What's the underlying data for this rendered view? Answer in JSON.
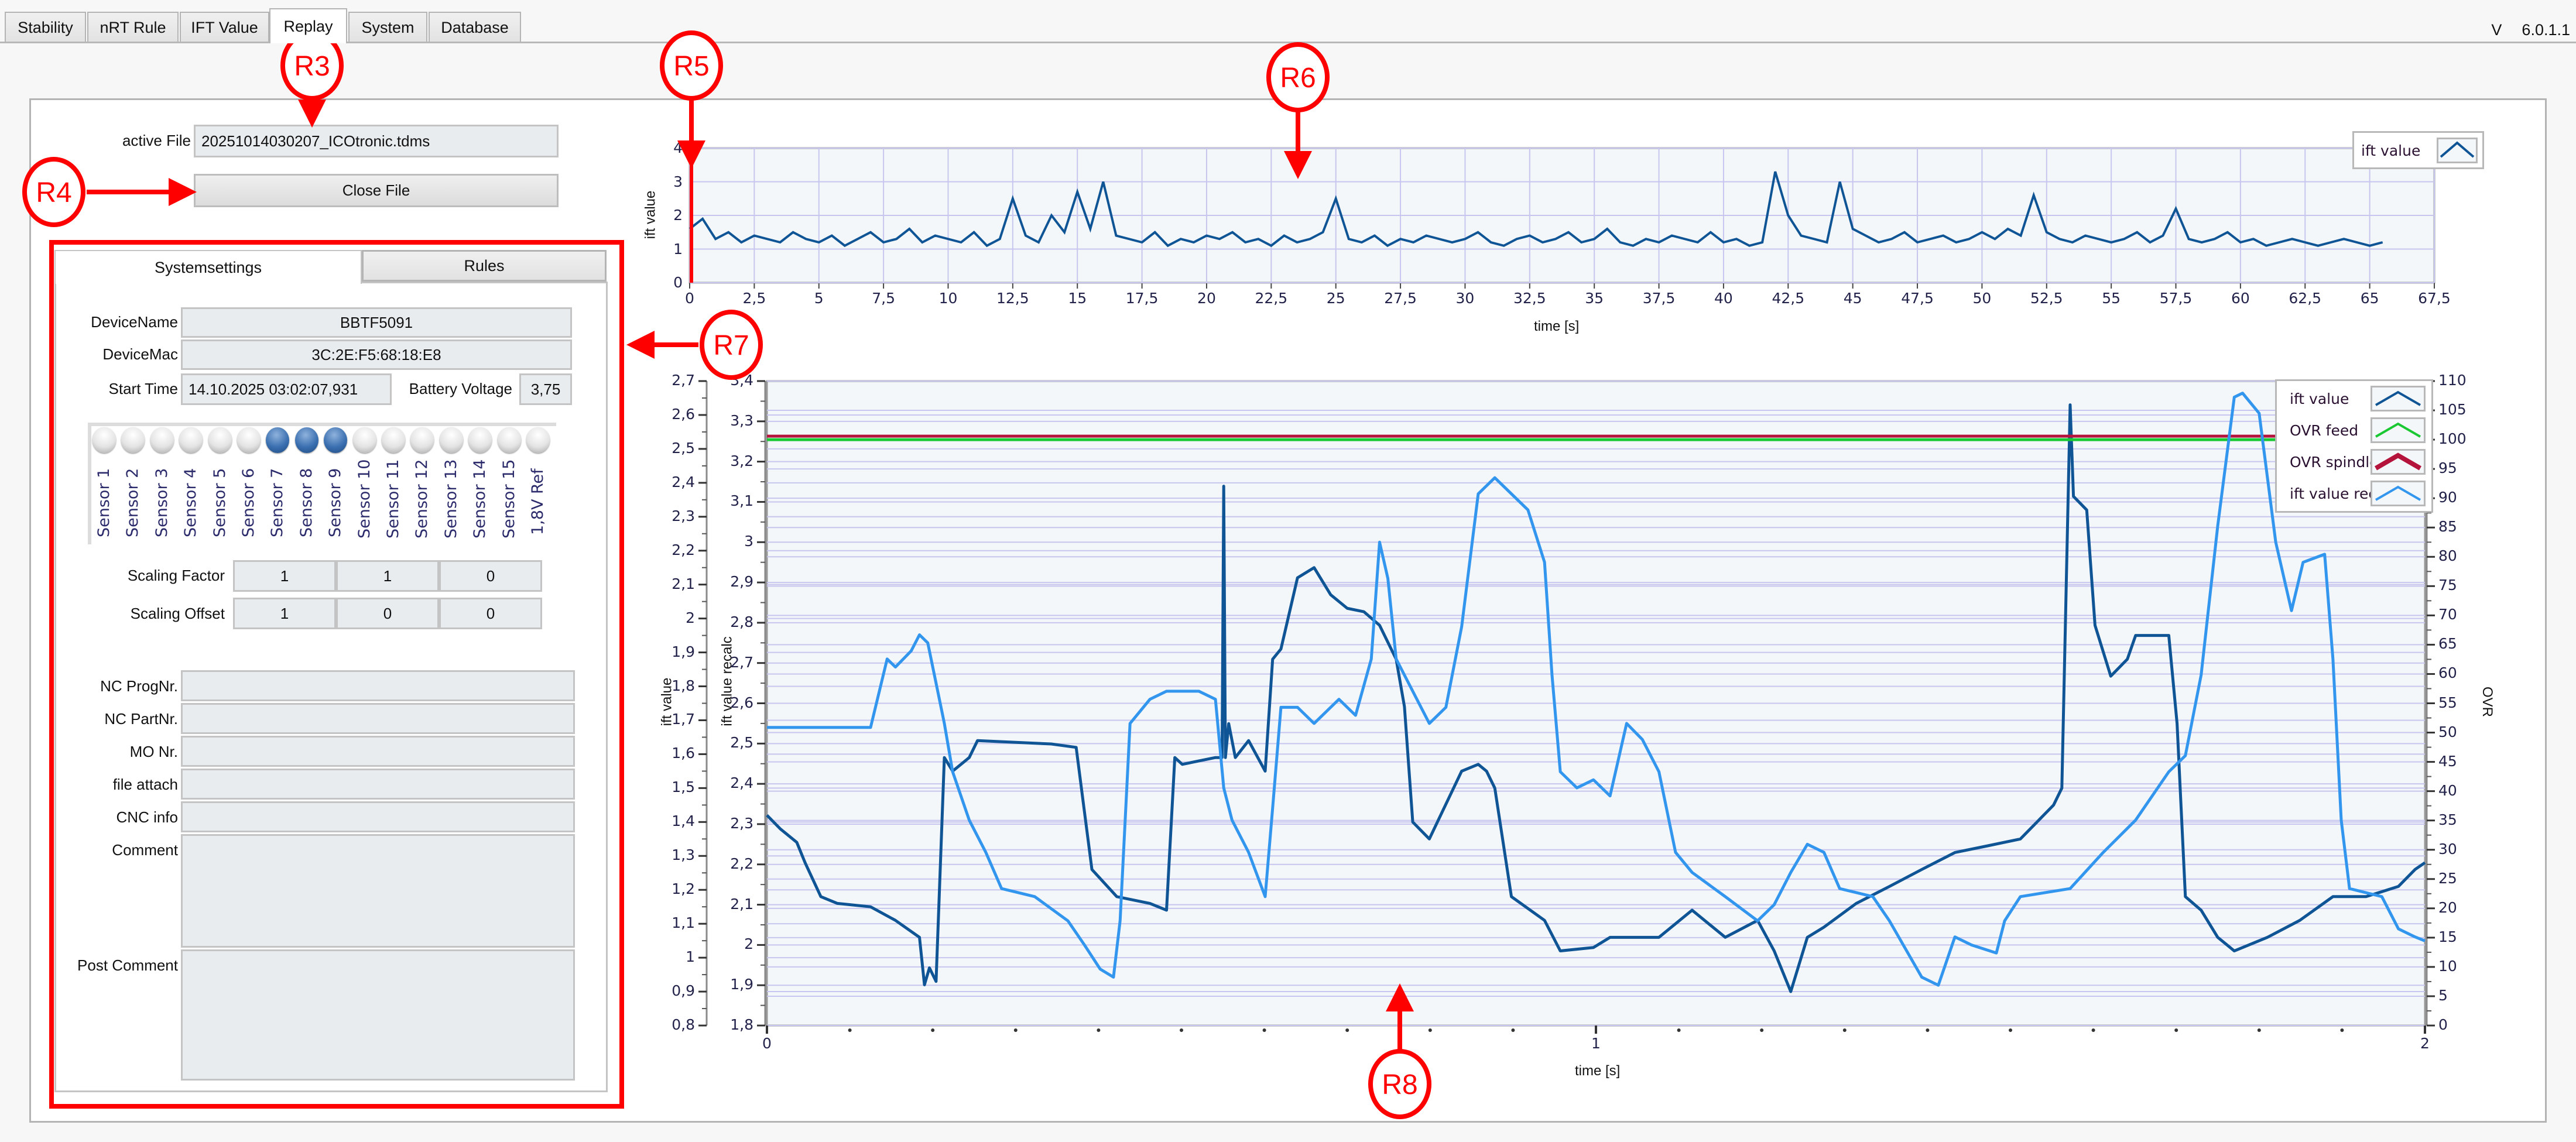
{
  "tabs": [
    {
      "label": "Stability",
      "selected": false
    },
    {
      "label": "nRT Rule",
      "selected": false
    },
    {
      "label": "IFT Value",
      "selected": false
    },
    {
      "label": "Replay",
      "selected": true
    },
    {
      "label": "System",
      "selected": false
    },
    {
      "label": "Database",
      "selected": false
    }
  ],
  "version": {
    "prefix": "V",
    "number": "6.0.1.1"
  },
  "file": {
    "label": "active File",
    "value": "20251014030207_ICOtronic.tdms",
    "close_button": "Close File"
  },
  "inner_tabs": [
    {
      "label": "Systemsettings",
      "selected": true
    },
    {
      "label": "Rules",
      "selected": false
    }
  ],
  "device": {
    "name_label": "DeviceName",
    "name": "BBTF5091",
    "mac_label": "DeviceMac",
    "mac": "3C:2E:F5:68:18:E8",
    "start_label": "Start Time",
    "start": "14.10.2025 03:02:07,931",
    "battery_label": "Battery Voltage",
    "battery": "3,75"
  },
  "sensors": [
    {
      "label": "Sensor 1",
      "on": false
    },
    {
      "label": "Sensor 2",
      "on": false
    },
    {
      "label": "Sensor 3",
      "on": false
    },
    {
      "label": "Sensor 4",
      "on": false
    },
    {
      "label": "Sensor 5",
      "on": false
    },
    {
      "label": "Sensor 6",
      "on": false
    },
    {
      "label": "Sensor 7",
      "on": true
    },
    {
      "label": "Sensor 8",
      "on": true
    },
    {
      "label": "Sensor 9",
      "on": true
    },
    {
      "label": "Sensor 10",
      "on": false
    },
    {
      "label": "Sensor 11",
      "on": false
    },
    {
      "label": "Sensor 12",
      "on": false
    },
    {
      "label": "Sensor 13",
      "on": false
    },
    {
      "label": "Sensor 14",
      "on": false
    },
    {
      "label": "Sensor 15",
      "on": false
    },
    {
      "label": "1,8V Ref",
      "on": false
    }
  ],
  "scaling": {
    "factor_label": "Scaling Factor",
    "factor": [
      "1",
      "1",
      "0"
    ],
    "offset_label": "Scaling Offset",
    "offset": [
      "1",
      "0",
      "0"
    ]
  },
  "info_fields": [
    {
      "label": "NC ProgNr.",
      "value": ""
    },
    {
      "label": "NC PartNr.",
      "value": ""
    },
    {
      "label": "MO Nr.",
      "value": ""
    },
    {
      "label": "file attach",
      "value": ""
    },
    {
      "label": "CNC info",
      "value": ""
    },
    {
      "label": "Comment",
      "value": ""
    },
    {
      "label": "Post Comment",
      "value": ""
    }
  ],
  "annotations": [
    "R3",
    "R4",
    "R5",
    "R6",
    "R7",
    "R8"
  ],
  "colors": {
    "ift_value": "#0f5596",
    "ovr_feed": "#19c832",
    "ovr_spindle": "#b4143c",
    "ift_recalc": "#3396ee",
    "annotation": "#ff0000",
    "grid": "#c6c6ee"
  },
  "chart_data": [
    {
      "type": "line",
      "xlabel": "time [s]",
      "ylabel": "ift value",
      "xlim": [
        0,
        67.5
      ],
      "ylim": [
        0,
        4
      ],
      "xticks": [
        "0",
        "2,5",
        "5",
        "7,5",
        "10",
        "12,5",
        "15",
        "17,5",
        "20",
        "22,5",
        "25",
        "27,5",
        "30",
        "32,5",
        "35",
        "37,5",
        "40",
        "42,5",
        "45",
        "47,5",
        "50",
        "52,5",
        "55",
        "57,5",
        "60",
        "62,5",
        "65",
        "67,5"
      ],
      "yticks": [
        "0",
        "1",
        "2",
        "3",
        "4"
      ],
      "grid": true,
      "legend": "top-right",
      "cursor_x": 0,
      "x_step": 0.5,
      "series": [
        {
          "name": "ift value",
          "color": "#0f5596",
          "values": [
            1.6,
            1.9,
            1.3,
            1.5,
            1.2,
            1.4,
            1.3,
            1.2,
            1.5,
            1.3,
            1.2,
            1.4,
            1.1,
            1.3,
            1.5,
            1.2,
            1.3,
            1.6,
            1.2,
            1.4,
            1.3,
            1.2,
            1.5,
            1.1,
            1.3,
            2.5,
            1.4,
            1.2,
            2.0,
            1.5,
            2.7,
            1.6,
            3.0,
            1.4,
            1.3,
            1.2,
            1.5,
            1.1,
            1.3,
            1.2,
            1.4,
            1.3,
            1.5,
            1.2,
            1.3,
            1.1,
            1.4,
            1.2,
            1.3,
            1.5,
            2.5,
            1.3,
            1.2,
            1.4,
            1.1,
            1.3,
            1.2,
            1.4,
            1.3,
            1.2,
            1.3,
            1.5,
            1.2,
            1.1,
            1.3,
            1.4,
            1.2,
            1.3,
            1.5,
            1.2,
            1.3,
            1.6,
            1.2,
            1.1,
            1.3,
            1.2,
            1.4,
            1.3,
            1.2,
            1.5,
            1.2,
            1.3,
            1.1,
            1.2,
            3.3,
            2.0,
            1.4,
            1.3,
            1.2,
            3.0,
            1.6,
            1.4,
            1.2,
            1.3,
            1.5,
            1.2,
            1.3,
            1.4,
            1.2,
            1.3,
            1.5,
            1.3,
            1.6,
            1.4,
            2.6,
            1.5,
            1.3,
            1.2,
            1.4,
            1.3,
            1.2,
            1.3,
            1.5,
            1.2,
            1.4,
            2.2,
            1.3,
            1.2,
            1.3,
            1.5,
            1.2,
            1.3,
            1.1,
            1.2,
            1.3,
            1.2,
            1.1,
            1.2,
            1.3,
            1.2,
            1.1,
            1.2
          ]
        }
      ]
    },
    {
      "type": "line",
      "xlabel": "time [s]",
      "xlim": [
        0,
        2
      ],
      "xticks": [
        "0",
        "1",
        "2"
      ],
      "axes": [
        {
          "id": "ift",
          "title": "ift value",
          "range": [
            0.8,
            2.7
          ],
          "ticks": [
            "0,8",
            "0,9",
            "1",
            "1,1",
            "1,2",
            "1,3",
            "1,4",
            "1,5",
            "1,6",
            "1,7",
            "1,8",
            "1,9",
            "2",
            "2,1",
            "2,2",
            "2,3",
            "2,4",
            "2,5",
            "2,6",
            "2,7"
          ]
        },
        {
          "id": "recalc",
          "title": "ift value recalc",
          "range": [
            1.8,
            3.4
          ],
          "ticks": [
            "1,8",
            "1,9",
            "2",
            "2,1",
            "2,2",
            "2,3",
            "2,4",
            "2,5",
            "2,6",
            "2,7",
            "2,8",
            "2,9",
            "3",
            "3,1",
            "3,2",
            "3,3",
            "3,4"
          ]
        },
        {
          "id": "ovr",
          "title": "OVR",
          "side": "right",
          "range": [
            0,
            110
          ],
          "ticks": [
            "0",
            "5",
            "10",
            "15",
            "20",
            "25",
            "30",
            "35",
            "40",
            "45",
            "50",
            "55",
            "60",
            "65",
            "70",
            "75",
            "80",
            "85",
            "90",
            "95",
            "100",
            "105",
            "110"
          ]
        }
      ],
      "grid": true,
      "legend": "top-right",
      "series": [
        {
          "name": "ift value",
          "axis": "ift",
          "color": "#0f5596",
          "x": [
            0,
            0.016,
            0.036,
            0.046,
            0.065,
            0.085,
            0.125,
            0.155,
            0.184,
            0.19,
            0.196,
            0.204,
            0.214,
            0.224,
            0.244,
            0.254,
            0.343,
            0.373,
            0.383,
            0.392,
            0.422,
            0.462,
            0.482,
            0.492,
            0.501,
            0.541,
            0.549,
            0.551,
            0.553,
            0.557,
            0.565,
            0.581,
            0.601,
            0.61,
            0.62,
            0.64,
            0.66,
            0.68,
            0.7,
            0.72,
            0.739,
            0.759,
            0.769,
            0.779,
            0.799,
            0.838,
            0.858,
            0.868,
            0.878,
            0.898,
            0.938,
            0.957,
            0.997,
            1.017,
            1.076,
            1.116,
            1.156,
            1.195,
            1.215,
            1.235,
            1.255,
            1.275,
            1.314,
            1.354,
            1.393,
            1.433,
            1.473,
            1.512,
            1.532,
            1.552,
            1.562,
            1.572,
            1.576,
            1.592,
            1.602,
            1.621,
            1.641,
            1.651,
            1.691,
            1.701,
            1.711,
            1.73,
            1.75,
            1.77,
            1.81,
            1.849,
            1.889,
            1.929,
            1.968,
            1.988,
            2.0
          ],
          "y": [
            1.42,
            1.38,
            1.34,
            1.28,
            1.18,
            1.16,
            1.15,
            1.11,
            1.06,
            0.92,
            0.97,
            0.93,
            1.59,
            1.55,
            1.59,
            1.64,
            1.63,
            1.62,
            1.43,
            1.26,
            1.18,
            1.16,
            1.14,
            1.59,
            1.57,
            1.59,
            1.59,
            2.39,
            1.59,
            1.69,
            1.59,
            1.64,
            1.55,
            1.88,
            1.91,
            2.12,
            2.15,
            2.07,
            2.03,
            2.02,
            1.98,
            1.88,
            1.74,
            1.4,
            1.35,
            1.55,
            1.57,
            1.55,
            1.5,
            1.18,
            1.11,
            1.02,
            1.03,
            1.06,
            1.06,
            1.14,
            1.06,
            1.11,
            1.02,
            0.9,
            1.06,
            1.09,
            1.16,
            1.21,
            1.26,
            1.31,
            1.33,
            1.35,
            1.4,
            1.45,
            1.5,
            2.63,
            2.36,
            2.32,
            1.98,
            1.83,
            1.88,
            1.95,
            1.95,
            1.69,
            1.18,
            1.14,
            1.06,
            1.02,
            1.06,
            1.11,
            1.18,
            1.18,
            1.21,
            1.26,
            1.28
          ]
        },
        {
          "name": "OVR feed",
          "axis": "ovr",
          "color": "#19c832",
          "x": [
            0,
            2
          ],
          "y": [
            100,
            100
          ]
        },
        {
          "name": "OVR spindle",
          "axis": "ovr",
          "color": "#b4143c",
          "x": [
            0,
            2
          ],
          "y": [
            100.6,
            100.6
          ]
        },
        {
          "name": "ift value recalc",
          "axis": "recalc",
          "color": "#3396ee",
          "x": [
            0,
            0.125,
            0.145,
            0.155,
            0.174,
            0.184,
            0.194,
            0.214,
            0.224,
            0.244,
            0.264,
            0.283,
            0.323,
            0.363,
            0.383,
            0.402,
            0.418,
            0.426,
            0.438,
            0.462,
            0.482,
            0.521,
            0.541,
            0.551,
            0.561,
            0.581,
            0.601,
            0.61,
            0.62,
            0.64,
            0.66,
            0.69,
            0.71,
            0.729,
            0.739,
            0.749,
            0.759,
            0.779,
            0.799,
            0.819,
            0.838,
            0.858,
            0.878,
            0.898,
            0.918,
            0.938,
            0.947,
            0.957,
            0.977,
            0.997,
            1.017,
            1.037,
            1.056,
            1.076,
            1.096,
            1.116,
            1.156,
            1.195,
            1.215,
            1.235,
            1.255,
            1.275,
            1.294,
            1.334,
            1.354,
            1.393,
            1.413,
            1.433,
            1.453,
            1.483,
            1.493,
            1.512,
            1.572,
            1.612,
            1.651,
            1.691,
            1.711,
            1.73,
            1.75,
            1.77,
            1.78,
            1.8,
            1.82,
            1.839,
            1.853,
            1.879,
            1.889,
            1.899,
            1.909,
            1.948,
            1.968,
            1.988,
            2.0
          ],
          "y": [
            2.54,
            2.54,
            2.71,
            2.69,
            2.73,
            2.77,
            2.75,
            2.55,
            2.43,
            2.31,
            2.23,
            2.14,
            2.12,
            2.06,
            2.0,
            1.94,
            1.92,
            2.06,
            2.55,
            2.61,
            2.63,
            2.63,
            2.61,
            2.39,
            2.31,
            2.23,
            2.12,
            2.34,
            2.59,
            2.59,
            2.55,
            2.61,
            2.57,
            2.71,
            3.0,
            2.91,
            2.71,
            2.63,
            2.55,
            2.59,
            2.79,
            3.12,
            3.16,
            3.12,
            3.08,
            2.95,
            2.67,
            2.43,
            2.39,
            2.41,
            2.37,
            2.55,
            2.51,
            2.43,
            2.23,
            2.18,
            2.12,
            2.06,
            2.1,
            2.18,
            2.25,
            2.23,
            2.14,
            2.12,
            2.06,
            1.92,
            1.9,
            2.02,
            2.0,
            1.98,
            2.06,
            2.12,
            2.14,
            2.23,
            2.31,
            2.43,
            2.47,
            2.67,
            3.04,
            3.36,
            3.37,
            3.32,
            3.0,
            2.83,
            2.95,
            2.97,
            2.71,
            2.31,
            2.14,
            2.12,
            2.04,
            2.02,
            2.01
          ]
        }
      ]
    }
  ]
}
